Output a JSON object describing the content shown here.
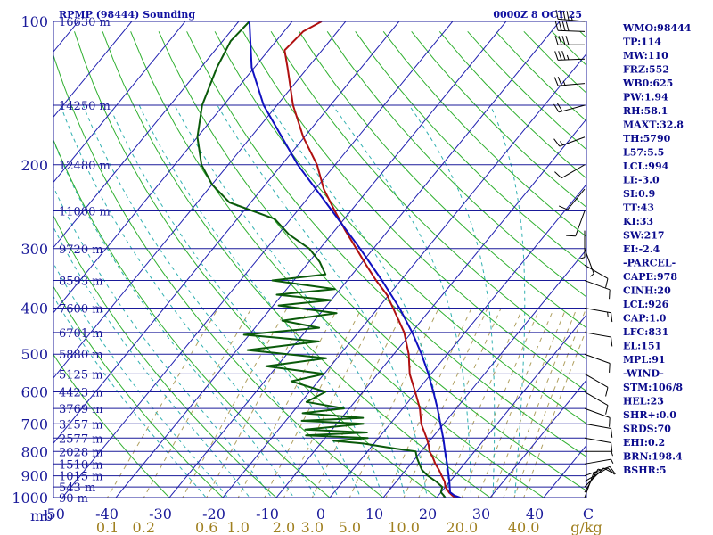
{
  "header": {
    "station": "RPMP (98444) Sounding",
    "time": "0000Z  8 OCT 25"
  },
  "colors": {
    "frame": "#1a1a9a",
    "isobar": "#1a1a9a",
    "isotherm": "#2020b0",
    "dry_adiabat": "#30b030",
    "moist_adiabat": "#30b0b0",
    "mixing_ratio": "#b0a060",
    "temperature": "#b01010",
    "dewpoint": "#0a5a0a",
    "parcel": "#1010c0",
    "wind_barb": "#000000",
    "index_text": "#0a0a8c"
  },
  "chart_data": {
    "type": "skew-t",
    "title": "RPMP (98444) Sounding",
    "valid_time": "0000Z  8 OCT 25",
    "y_axis_label": "mb",
    "x_axis_unit": "C",
    "mixing_ratio_unit": "g/kg",
    "pressure_range_mb": [
      1000,
      100
    ],
    "temperature_range_c": [
      -50,
      50
    ],
    "pressure_ticks": [
      100,
      200,
      300,
      400,
      500,
      600,
      700,
      800,
      900,
      1000
    ],
    "temperature_ticks": [
      -50,
      -40,
      -30,
      -20,
      -10,
      0,
      10,
      20,
      30,
      40,
      50
    ],
    "temperature_tick_labels": [
      "-50",
      "-40",
      "-30",
      "-20",
      "-10",
      "0",
      "10",
      "20",
      "30",
      "40",
      "C"
    ],
    "mixing_ratio_labels": [
      "0.1",
      "0.2",
      "0.6",
      "1.0",
      "2.0",
      "3.0",
      "5.0",
      "10.0",
      "20.0",
      "40.0",
      "g/kg"
    ],
    "mixing_ratio_values": [
      0.1,
      0.2,
      0.6,
      1.0,
      2.0,
      3.0,
      5.0,
      10.0,
      20.0,
      40.0
    ],
    "height_labels": [
      {
        "p": 100,
        "label": "16630 m"
      },
      {
        "p": 150,
        "label": "14250 m"
      },
      {
        "p": 200,
        "label": "12480 m"
      },
      {
        "p": 250,
        "label": "11000 m"
      },
      {
        "p": 300,
        "label": "9720 m"
      },
      {
        "p": 350,
        "label": "8593 m"
      },
      {
        "p": 400,
        "label": "7600 m"
      },
      {
        "p": 450,
        "label": "6701 m"
      },
      {
        "p": 500,
        "label": "5880 m"
      },
      {
        "p": 550,
        "label": "5125 m"
      },
      {
        "p": 600,
        "label": "4423 m"
      },
      {
        "p": 650,
        "label": "3769 m"
      },
      {
        "p": 700,
        "label": "3157 m"
      },
      {
        "p": 750,
        "label": "2577 m"
      },
      {
        "p": 800,
        "label": "2028 m"
      },
      {
        "p": 850,
        "label": "1510 m"
      },
      {
        "p": 900,
        "label": "1015 m"
      },
      {
        "p": 950,
        "label": "543 m"
      },
      {
        "p": 1000,
        "label": "90 m"
      }
    ],
    "series": [
      {
        "key": "temperature",
        "points": [
          [
            1007,
            24.0
          ],
          [
            1000,
            23.5
          ],
          [
            990,
            22.6
          ],
          [
            975,
            21.5
          ],
          [
            950,
            20.0
          ],
          [
            925,
            19.0
          ],
          [
            900,
            17.6
          ],
          [
            875,
            16.2
          ],
          [
            850,
            14.6
          ],
          [
            825,
            13.2
          ],
          [
            800,
            11.6
          ],
          [
            775,
            10.4
          ],
          [
            750,
            9.0
          ],
          [
            700,
            5.8
          ],
          [
            650,
            3.2
          ],
          [
            600,
            -0.2
          ],
          [
            550,
            -4.0
          ],
          [
            500,
            -7.2
          ],
          [
            450,
            -11.4
          ],
          [
            425,
            -14.2
          ],
          [
            400,
            -17.2
          ],
          [
            375,
            -20.4
          ],
          [
            350,
            -24.6
          ],
          [
            325,
            -28.8
          ],
          [
            300,
            -33.2
          ],
          [
            275,
            -38.0
          ],
          [
            250,
            -43.0
          ],
          [
            225,
            -48.4
          ],
          [
            200,
            -53.4
          ],
          [
            175,
            -60.2
          ],
          [
            150,
            -67.0
          ],
          [
            125,
            -73.8
          ],
          [
            115,
            -77.0
          ],
          [
            105,
            -76.4
          ],
          [
            100,
            -74.5
          ]
        ]
      },
      {
        "key": "dewpoint",
        "points": [
          [
            1007,
            22.0
          ],
          [
            1000,
            21.6
          ],
          [
            990,
            21.0
          ],
          [
            975,
            20.0
          ],
          [
            950,
            19.4
          ],
          [
            925,
            17.4
          ],
          [
            900,
            15.0
          ],
          [
            875,
            13.0
          ],
          [
            850,
            11.6
          ],
          [
            825,
            10.2
          ],
          [
            800,
            9.0
          ],
          [
            790,
            5.0
          ],
          [
            780,
            1.5
          ],
          [
            770,
            -2.0
          ],
          [
            760,
            -8.0
          ],
          [
            750,
            -2.0
          ],
          [
            740,
            -14.0
          ],
          [
            730,
            -3.0
          ],
          [
            720,
            -15.0
          ],
          [
            700,
            -5.0
          ],
          [
            690,
            -17.0
          ],
          [
            680,
            -6.0
          ],
          [
            665,
            -18.0
          ],
          [
            650,
            -11.0
          ],
          [
            630,
            -19.0
          ],
          [
            600,
            -17.0
          ],
          [
            570,
            -25.0
          ],
          [
            550,
            -20.0
          ],
          [
            530,
            -32.0
          ],
          [
            510,
            -22.0
          ],
          [
            490,
            -38.0
          ],
          [
            470,
            -26.0
          ],
          [
            455,
            -41.0
          ],
          [
            440,
            -28.0
          ],
          [
            425,
            -36.0
          ],
          [
            410,
            -27.0
          ],
          [
            395,
            -39.0
          ],
          [
            385,
            -30.0
          ],
          [
            375,
            -41.0
          ],
          [
            365,
            -31.0
          ],
          [
            350,
            -44.0
          ],
          [
            340,
            -35.0
          ],
          [
            320,
            -38.0
          ],
          [
            300,
            -42.0
          ],
          [
            280,
            -48.0
          ],
          [
            260,
            -53.0
          ],
          [
            240,
            -64.0
          ],
          [
            220,
            -70.0
          ],
          [
            200,
            -75.0
          ],
          [
            175,
            -80.0
          ],
          [
            150,
            -84.0
          ],
          [
            125,
            -87.0
          ],
          [
            110,
            -88.5
          ],
          [
            100,
            -88.0
          ]
        ]
      },
      {
        "key": "parcel",
        "points": [
          [
            1007,
            25.3
          ],
          [
            990,
            23.0
          ],
          [
            975,
            21.7
          ],
          [
            950,
            20.8
          ],
          [
            925,
            19.9
          ],
          [
            900,
            18.9
          ],
          [
            850,
            16.8
          ],
          [
            800,
            14.5
          ],
          [
            750,
            12.1
          ],
          [
            700,
            9.4
          ],
          [
            650,
            6.5
          ],
          [
            600,
            3.2
          ],
          [
            550,
            -0.5
          ],
          [
            500,
            -4.8
          ],
          [
            450,
            -9.9
          ],
          [
            400,
            -16.0
          ],
          [
            350,
            -23.5
          ],
          [
            300,
            -32.5
          ],
          [
            250,
            -43.5
          ],
          [
            200,
            -57.0
          ],
          [
            150,
            -72.5
          ],
          [
            125,
            -80.5
          ],
          [
            100,
            -88.0
          ]
        ]
      }
    ],
    "wind_barbs": [
      {
        "p": 100,
        "dir": 275,
        "spd": 45
      },
      {
        "p": 105,
        "dir": 272,
        "spd": 40
      },
      {
        "p": 112,
        "dir": 270,
        "spd": 40
      },
      {
        "p": 120,
        "dir": 268,
        "spd": 35
      },
      {
        "p": 135,
        "dir": 265,
        "spd": 25
      },
      {
        "p": 150,
        "dir": 255,
        "spd": 20
      },
      {
        "p": 175,
        "dir": 250,
        "spd": 15
      },
      {
        "p": 200,
        "dir": 240,
        "spd": 10
      },
      {
        "p": 225,
        "dir": 220,
        "spd": 10
      },
      {
        "p": 250,
        "dir": 200,
        "spd": 10
      },
      {
        "p": 275,
        "dir": 180,
        "spd": 5
      },
      {
        "p": 300,
        "dir": 160,
        "spd": 5
      },
      {
        "p": 325,
        "dir": 120,
        "spd": 10
      },
      {
        "p": 350,
        "dir": 110,
        "spd": 10
      },
      {
        "p": 400,
        "dir": 100,
        "spd": 15
      },
      {
        "p": 450,
        "dir": 100,
        "spd": 10
      },
      {
        "p": 500,
        "dir": 110,
        "spd": 10
      },
      {
        "p": 550,
        "dir": 120,
        "spd": 10
      },
      {
        "p": 600,
        "dir": 120,
        "spd": 10
      },
      {
        "p": 650,
        "dir": 110,
        "spd": 10
      },
      {
        "p": 700,
        "dir": 100,
        "spd": 10
      },
      {
        "p": 750,
        "dir": 100,
        "spd": 10
      },
      {
        "p": 800,
        "dir": 90,
        "spd": 5
      },
      {
        "p": 850,
        "dir": 80,
        "spd": 5
      },
      {
        "p": 900,
        "dir": 70,
        "spd": 10
      },
      {
        "p": 925,
        "dir": 60,
        "spd": 10
      },
      {
        "p": 950,
        "dir": 45,
        "spd": 10
      },
      {
        "p": 975,
        "dir": 30,
        "spd": 5
      },
      {
        "p": 1000,
        "dir": 20,
        "spd": 5
      }
    ],
    "indices": [
      "WMO:98444",
      "TP:114",
      "MW:110",
      "FRZ:552",
      "WB0:625",
      "PW:1.94",
      "RH:58.1",
      "MAXT:32.8",
      "TH:5790",
      "L57:5.5",
      "LCL:994",
      "LI:-3.0",
      "SI:0.9",
      "TT:43",
      "KI:33",
      "SW:217",
      "EI:-2.4",
      "-PARCEL-",
      "CAPE:978",
      "CINH:20",
      "LCL:926",
      "CAP:1.0",
      "LFC:831",
      "EL:151",
      "MPL:91",
      "-WIND-",
      "STM:106/8",
      "HEL:23",
      "SHR+:0.0",
      "SRDS:70",
      "EHI:0.2",
      "BRN:198.4",
      "BSHR:5"
    ]
  }
}
